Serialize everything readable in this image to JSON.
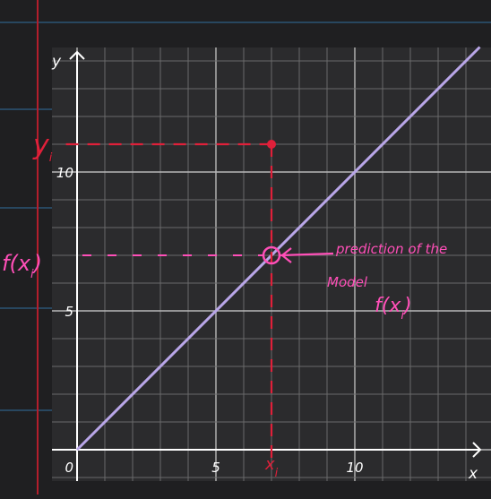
{
  "colors": {
    "page": "#1f1f21",
    "ruled_line": "#2f5f86",
    "margin_line": "#b31e2c",
    "plot_bg": "#2b2b2d",
    "grid_major": "#b8b8b8",
    "grid_minor": "#6a6a6a",
    "axis": "#ffffff",
    "line": "#b9a6e8",
    "red": "#e0203a",
    "pink": "#ff4fb8"
  },
  "annotations": {
    "y_i": "y",
    "y_i_sub": "i",
    "x_i": "x",
    "x_i_sub": "i",
    "f_xi_left": "f(x",
    "f_xi_left_sub": "i",
    "f_xi_left_close": ")",
    "prediction_line1": "prediction of the",
    "prediction_line2": "Model",
    "prediction_fx": "f(x",
    "prediction_fx_sub": "i",
    "prediction_fx_close": ")"
  },
  "chart_data": {
    "type": "line",
    "xlabel": "x",
    "ylabel": "y",
    "xlim": [
      -0.8,
      14.5
    ],
    "ylim": [
      -1.0,
      14.5
    ],
    "x_ticks": [
      0,
      5,
      10
    ],
    "x_tick_labels": [
      "0",
      "5",
      "10"
    ],
    "y_ticks": [
      5,
      10
    ],
    "y_tick_labels": [
      "5",
      "10"
    ],
    "grid": true,
    "minor_step": 1,
    "series": [
      {
        "x": [
          0,
          14.5
        ],
        "y": [
          0,
          14.5
        ]
      }
    ],
    "observed_point": {
      "x": 7,
      "y": 11
    },
    "predicted_point": {
      "x": 7,
      "y": 7
    }
  }
}
